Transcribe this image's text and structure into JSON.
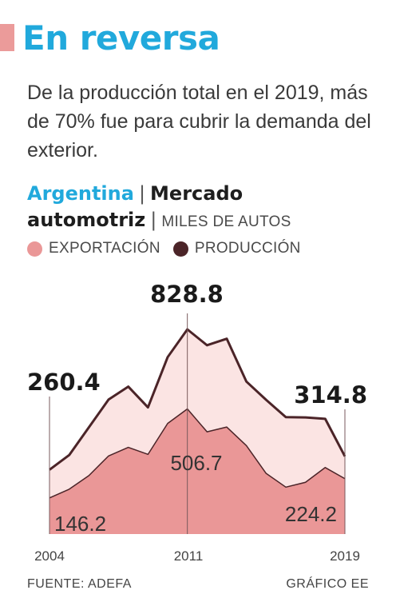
{
  "header": {
    "title": "En reversa",
    "subtitle": "De la producción total en el 2019, más de 70% fue para cubrir la demanda del exterior.",
    "country": "Argentina",
    "topic": "Mercado automotriz",
    "units": "MILES DE AUTOS"
  },
  "colors": {
    "accent": "#21a9dc",
    "brand_bar": "#eb9b9a",
    "exportacion": "#ea9797",
    "produccion_fill": "#fbe4e3",
    "produccion_line": "#4b2428"
  },
  "legend": {
    "exportacion": "EXPORTACIÓN",
    "produccion": "PRODUCCIÓN"
  },
  "chart_data": {
    "type": "area",
    "x": [
      2004,
      2005,
      2006,
      2007,
      2008,
      2009,
      2010,
      2011,
      2012,
      2013,
      2014,
      2015,
      2016,
      2017,
      2018,
      2019
    ],
    "series": [
      {
        "name": "PRODUCCIÓN",
        "values": [
          260.4,
          319.8,
          432.1,
          544.6,
          597.1,
          512.9,
          716.5,
          828.8,
          764.5,
          791.0,
          617.3,
          543.4,
          473.4,
          472.2,
          466.6,
          314.8
        ]
      },
      {
        "name": "EXPORTACIÓN",
        "values": [
          146.2,
          181.6,
          236.8,
          316.4,
          351.1,
          322.6,
          447.9,
          506.7,
          413.9,
          433.3,
          357.9,
          245.6,
          190.0,
          209.6,
          269.4,
          224.2
        ]
      }
    ],
    "annotations": {
      "produccion_2004": "260.4",
      "exportacion_2004": "146.2",
      "produccion_2011": "828.8",
      "exportacion_2011": "506.7",
      "produccion_2019": "314.8",
      "exportacion_2019": "224.2"
    },
    "x_ticks": [
      "2004",
      "2011",
      "2019"
    ],
    "ylim": [
      0,
      900
    ],
    "grid": false,
    "legend_position": "top-left"
  },
  "footer": {
    "source": "FUENTE: ADEFA",
    "credit": "GRÁFICO EE"
  }
}
